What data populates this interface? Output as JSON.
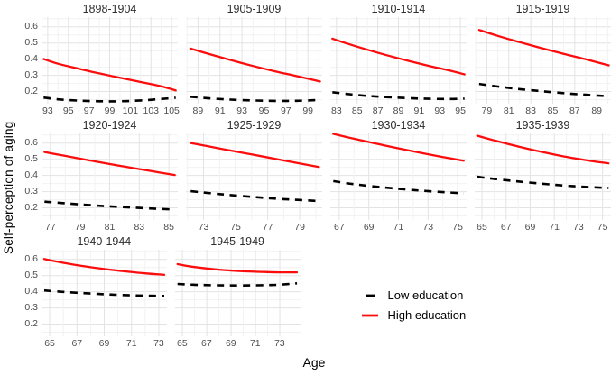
{
  "chart_data": {
    "type": "line",
    "title": "",
    "xlabel": "Age",
    "ylabel": "Self-perception of aging",
    "ylim": [
      0.125,
      0.66
    ],
    "yticks": [
      0.2,
      0.3,
      0.4,
      0.5,
      0.6
    ],
    "yminor": [
      0.15,
      0.25,
      0.35,
      0.45,
      0.55,
      0.65
    ],
    "grid": "on",
    "legend_position": "bottom-right",
    "series_names": [
      "Low education",
      "High education"
    ],
    "legend": [
      {
        "label": "Low education",
        "series": "low",
        "style": "dashed",
        "color": "#000000"
      },
      {
        "label": "High education",
        "series": "high",
        "style": "solid",
        "color": "#fb0d0d"
      }
    ],
    "style": {
      "low_color": "#000000",
      "high_color": "#fb0d0d",
      "grid_major_color": "#e3e3e3",
      "grid_minor_color": "#f2f2f2",
      "tick_label_color": "#4d4d4d",
      "strip_text_color": "#2e2e2e"
    },
    "panels": [
      {
        "cohort": "1898-1904",
        "xticks": [
          93,
          95,
          97,
          99,
          101,
          103,
          105
        ],
        "xdomain": [
          92.4,
          105.6
        ],
        "high": [
          [
            92.6,
            0.401
          ],
          [
            94,
            0.372
          ],
          [
            96,
            0.341
          ],
          [
            98,
            0.312
          ],
          [
            100,
            0.285
          ],
          [
            102,
            0.259
          ],
          [
            104,
            0.232
          ],
          [
            105.4,
            0.207
          ]
        ],
        "low": [
          [
            92.6,
            0.163
          ],
          [
            94,
            0.152
          ],
          [
            96,
            0.144
          ],
          [
            98,
            0.14
          ],
          [
            100,
            0.14
          ],
          [
            102,
            0.145
          ],
          [
            104,
            0.154
          ],
          [
            105.4,
            0.162
          ]
        ]
      },
      {
        "cohort": "1905-1909",
        "xticks": [
          89,
          91,
          93,
          95,
          97,
          99
        ],
        "xdomain": [
          87.9,
          100.3
        ],
        "high": [
          [
            88.3,
            0.466
          ],
          [
            90,
            0.432
          ],
          [
            92,
            0.394
          ],
          [
            94,
            0.358
          ],
          [
            96,
            0.325
          ],
          [
            98,
            0.295
          ],
          [
            100.1,
            0.262
          ]
        ],
        "low": [
          [
            88.3,
            0.168
          ],
          [
            90,
            0.158
          ],
          [
            92,
            0.15
          ],
          [
            94,
            0.145
          ],
          [
            96,
            0.142
          ],
          [
            98,
            0.143
          ],
          [
            100.1,
            0.148
          ]
        ]
      },
      {
        "cohort": "1910-1914",
        "xticks": [
          83,
          85,
          87,
          89,
          91,
          93,
          95
        ],
        "xdomain": [
          82.4,
          95.6
        ],
        "high": [
          [
            82.6,
            0.527
          ],
          [
            84,
            0.497
          ],
          [
            86,
            0.458
          ],
          [
            88,
            0.422
          ],
          [
            90,
            0.389
          ],
          [
            92,
            0.358
          ],
          [
            94,
            0.329
          ],
          [
            95.4,
            0.306
          ]
        ],
        "low": [
          [
            82.6,
            0.196
          ],
          [
            84,
            0.185
          ],
          [
            86,
            0.173
          ],
          [
            88,
            0.165
          ],
          [
            90,
            0.159
          ],
          [
            92,
            0.155
          ],
          [
            94,
            0.154
          ],
          [
            95.4,
            0.156
          ]
        ]
      },
      {
        "cohort": "1915-1919",
        "xticks": [
          79,
          81,
          83,
          85,
          87,
          89
        ],
        "xdomain": [
          77.9,
          90.3
        ],
        "high": [
          [
            78.3,
            0.581
          ],
          [
            80,
            0.544
          ],
          [
            82,
            0.505
          ],
          [
            84,
            0.468
          ],
          [
            86,
            0.433
          ],
          [
            88,
            0.399
          ],
          [
            90.1,
            0.362
          ]
        ],
        "low": [
          [
            78.3,
            0.247
          ],
          [
            80,
            0.231
          ],
          [
            82,
            0.215
          ],
          [
            84,
            0.202
          ],
          [
            86,
            0.19
          ],
          [
            88,
            0.18
          ],
          [
            90.1,
            0.171
          ]
        ]
      },
      {
        "cohort": "1920-1924",
        "xticks": [
          77,
          79,
          81,
          83,
          85
        ],
        "xdomain": [
          76.4,
          85.6
        ],
        "high": [
          [
            76.6,
            0.545
          ],
          [
            78,
            0.521
          ],
          [
            80,
            0.487
          ],
          [
            82,
            0.455
          ],
          [
            84,
            0.424
          ],
          [
            85.4,
            0.403
          ]
        ],
        "low": [
          [
            76.6,
            0.238
          ],
          [
            78,
            0.228
          ],
          [
            80,
            0.215
          ],
          [
            82,
            0.204
          ],
          [
            84,
            0.195
          ],
          [
            85.4,
            0.19
          ]
        ]
      },
      {
        "cohort": "1925-1929",
        "xticks": [
          73,
          75,
          77,
          79
        ],
        "xdomain": [
          71.9,
          80.4
        ],
        "high": [
          [
            72.2,
            0.601
          ],
          [
            74,
            0.567
          ],
          [
            76,
            0.53
          ],
          [
            78,
            0.493
          ],
          [
            80.2,
            0.452
          ]
        ],
        "low": [
          [
            72.2,
            0.303
          ],
          [
            74,
            0.285
          ],
          [
            76,
            0.268
          ],
          [
            78,
            0.254
          ],
          [
            80.2,
            0.242
          ]
        ]
      },
      {
        "cohort": "1930-1934",
        "xticks": [
          67,
          69,
          71,
          73,
          75
        ],
        "xdomain": [
          66.4,
          75.6
        ],
        "high": [
          [
            66.6,
            0.657
          ],
          [
            68,
            0.627
          ],
          [
            70,
            0.587
          ],
          [
            72,
            0.549
          ],
          [
            74,
            0.514
          ],
          [
            75.4,
            0.491
          ]
        ],
        "low": [
          [
            66.6,
            0.365
          ],
          [
            68,
            0.346
          ],
          [
            70,
            0.326
          ],
          [
            72,
            0.31
          ],
          [
            74,
            0.297
          ],
          [
            75.4,
            0.29
          ]
        ]
      },
      {
        "cohort": "1935-1939",
        "xticks": [
          65,
          67,
          69,
          71,
          73,
          75
        ],
        "xdomain": [
          64.4,
          75.7
        ],
        "high": [
          [
            64.6,
            0.646
          ],
          [
            66,
            0.617
          ],
          [
            68,
            0.579
          ],
          [
            70,
            0.545
          ],
          [
            72,
            0.515
          ],
          [
            74,
            0.49
          ],
          [
            75.5,
            0.475
          ]
        ],
        "low": [
          [
            64.6,
            0.392
          ],
          [
            66,
            0.379
          ],
          [
            68,
            0.363
          ],
          [
            70,
            0.349
          ],
          [
            72,
            0.337
          ],
          [
            74,
            0.328
          ],
          [
            75.5,
            0.323
          ]
        ]
      },
      {
        "cohort": "1940-1944",
        "xticks": [
          65,
          67,
          69,
          71,
          73
        ],
        "xdomain": [
          64.4,
          73.6
        ],
        "high": [
          [
            64.6,
            0.603
          ],
          [
            66,
            0.579
          ],
          [
            68,
            0.552
          ],
          [
            70,
            0.531
          ],
          [
            72,
            0.514
          ],
          [
            73.4,
            0.505
          ]
        ],
        "low": [
          [
            64.6,
            0.408
          ],
          [
            66,
            0.399
          ],
          [
            68,
            0.389
          ],
          [
            70,
            0.381
          ],
          [
            72,
            0.376
          ],
          [
            73.4,
            0.374
          ]
        ]
      },
      {
        "cohort": "1945-1949",
        "xticks": [
          65,
          67,
          69,
          71,
          73
        ],
        "xdomain": [
          64.4,
          74.7
        ],
        "high": [
          [
            64.6,
            0.571
          ],
          [
            66,
            0.553
          ],
          [
            68,
            0.537
          ],
          [
            70,
            0.527
          ],
          [
            72,
            0.522
          ],
          [
            73,
            0.52
          ],
          [
            74.4,
            0.52
          ]
        ],
        "low": [
          [
            64.6,
            0.448
          ],
          [
            66,
            0.443
          ],
          [
            68,
            0.44
          ],
          [
            70,
            0.439
          ],
          [
            72,
            0.441
          ],
          [
            73,
            0.444
          ],
          [
            74.4,
            0.452
          ]
        ]
      }
    ]
  }
}
